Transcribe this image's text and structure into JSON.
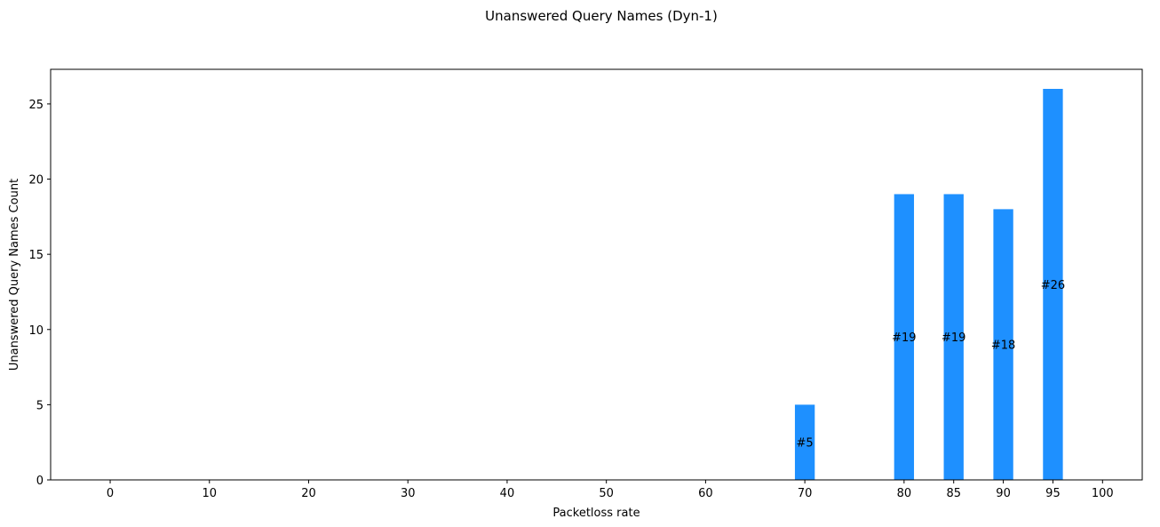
{
  "chart_data": {
    "type": "bar",
    "title": "Unanswered Query Names (Dyn-1)",
    "xlabel": "Packetloss rate",
    "ylabel": "Unanswered Query Names Count",
    "x": [
      0,
      10,
      20,
      30,
      40,
      50,
      60,
      70,
      80,
      85,
      90,
      95,
      100
    ],
    "values": [
      0,
      0,
      0,
      0,
      0,
      0,
      0,
      5,
      19,
      19,
      18,
      26,
      0
    ],
    "bar_labels": [
      "",
      "",
      "",
      "",
      "",
      "",
      "",
      "#5",
      "#19",
      "#19",
      "#18",
      "#26",
      ""
    ],
    "xlim": [
      -6,
      104
    ],
    "ylim": [
      0,
      27.3
    ],
    "yticks": [
      0,
      5,
      10,
      15,
      20,
      25
    ],
    "bar_color": "#1e90ff",
    "grid": false,
    "legend": false
  }
}
